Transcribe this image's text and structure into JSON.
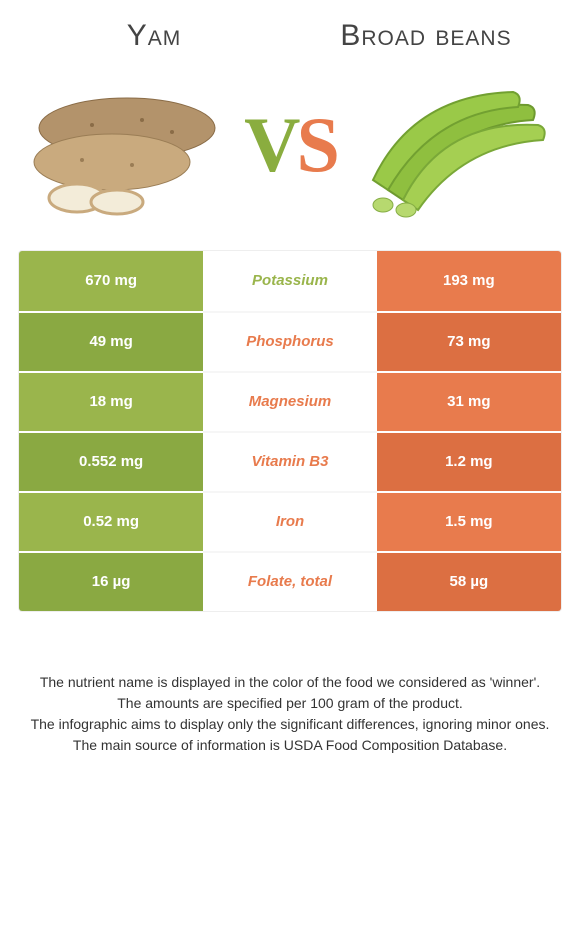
{
  "colors": {
    "left": "#9ab54c",
    "right": "#e87b4d",
    "left_darker": "#8aa942",
    "right_darker": "#dc6f42",
    "mid_winner_left": "#9ab54c",
    "mid_winner_right": "#e87b4d",
    "background": "#ffffff",
    "text": "#333333"
  },
  "header": {
    "left_title": "Yam",
    "right_title": "Broad beans"
  },
  "vs": {
    "v": "V",
    "s": "S"
  },
  "table": {
    "rows": [
      {
        "label": "Potassium",
        "left": "670 mg",
        "right": "193 mg",
        "winner": "left"
      },
      {
        "label": "Phosphorus",
        "left": "49 mg",
        "right": "73 mg",
        "winner": "right"
      },
      {
        "label": "Magnesium",
        "left": "18 mg",
        "right": "31 mg",
        "winner": "right"
      },
      {
        "label": "Vitamin B3",
        "left": "0.552 mg",
        "right": "1.2 mg",
        "winner": "right"
      },
      {
        "label": "Iron",
        "left": "0.52 mg",
        "right": "1.5 mg",
        "winner": "right"
      },
      {
        "label": "Folate, total",
        "left": "16 µg",
        "right": "58 µg",
        "winner": "right"
      }
    ]
  },
  "footnotes": [
    "The nutrient name is displayed in the color of the food we considered as 'winner'.",
    "The amounts are specified per 100 gram of the product.",
    "The infographic aims to display only the significant differences, ignoring minor ones.",
    "The main source of information is USDA Food Composition Database."
  ]
}
